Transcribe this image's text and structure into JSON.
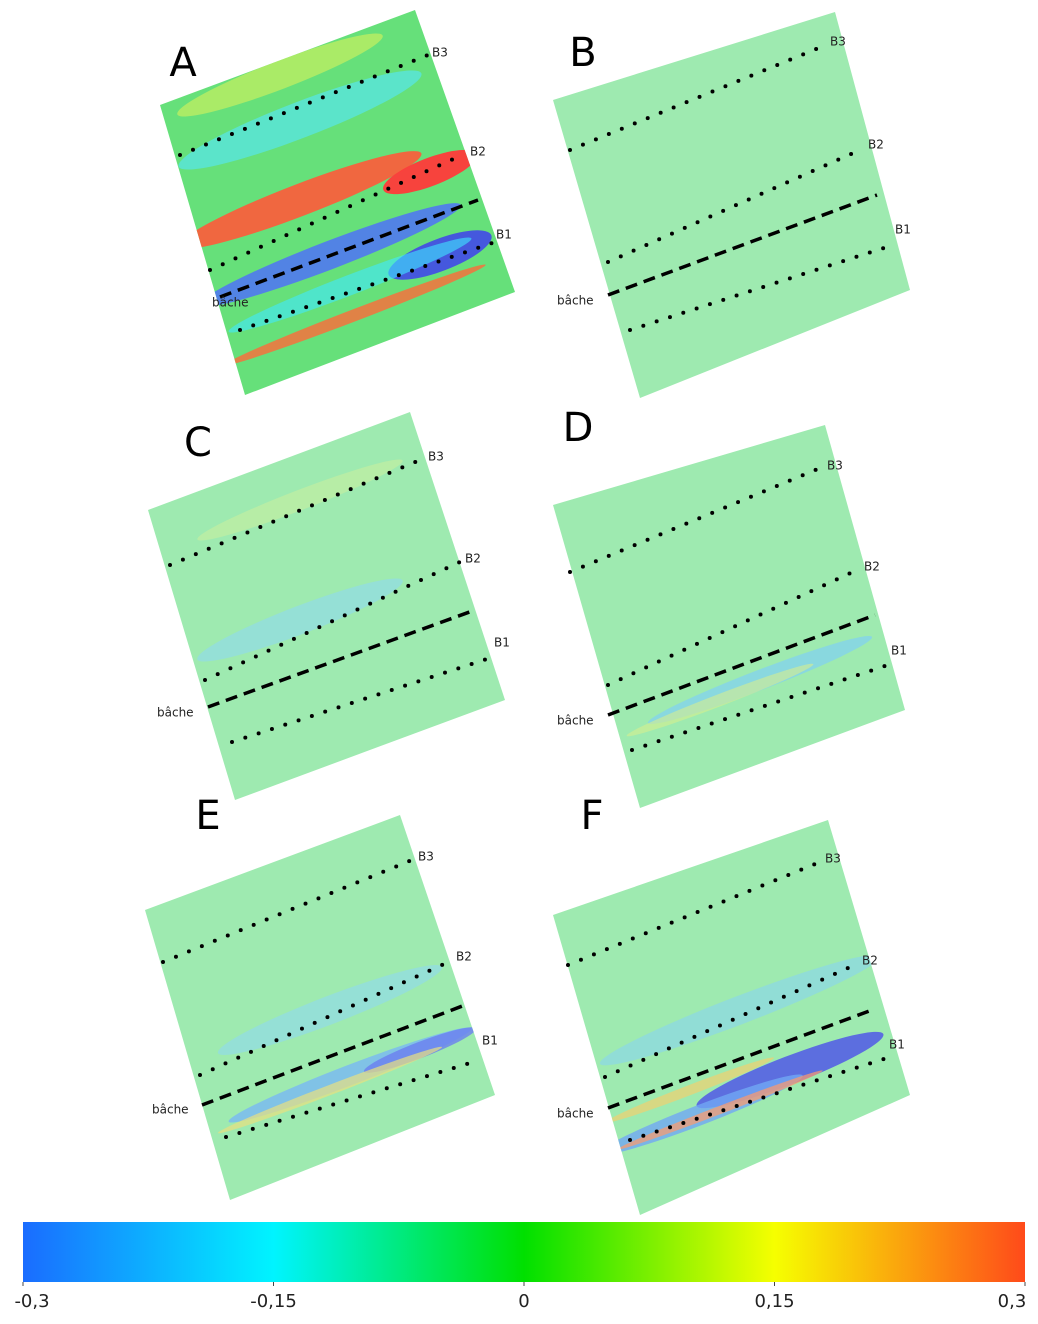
{
  "panels": [
    {
      "letter": "A",
      "labels": {
        "b3": "B3",
        "b2": "B2",
        "b1": "B1",
        "tarp": "bâche"
      }
    },
    {
      "letter": "B",
      "labels": {
        "b3": "B3",
        "b2": "B2",
        "b1": "B1",
        "tarp": "bâche"
      }
    },
    {
      "letter": "C",
      "labels": {
        "b3": "B3",
        "b2": "B2",
        "b1": "B1",
        "tarp": "bâche"
      }
    },
    {
      "letter": "D",
      "labels": {
        "b3": "B3",
        "b2": "B2",
        "b1": "B1",
        "tarp": "bâche"
      }
    },
    {
      "letter": "E",
      "labels": {
        "b3": "B3",
        "b2": "B2",
        "b1": "B1",
        "tarp": "bâche"
      }
    },
    {
      "letter": "F",
      "labels": {
        "b3": "B3",
        "b2": "B2",
        "b1": "B1",
        "tarp": "bâche"
      }
    }
  ],
  "colorbar": {
    "lim": [
      -0.3,
      0.3
    ],
    "ticks": [
      {
        "value": -0.3,
        "label": "-0,3"
      },
      {
        "value": -0.15,
        "label": "-0,15"
      },
      {
        "value": 0,
        "label": "0"
      },
      {
        "value": 0.15,
        "label": "0,15"
      },
      {
        "value": 0.3,
        "label": "0,3"
      }
    ]
  }
}
